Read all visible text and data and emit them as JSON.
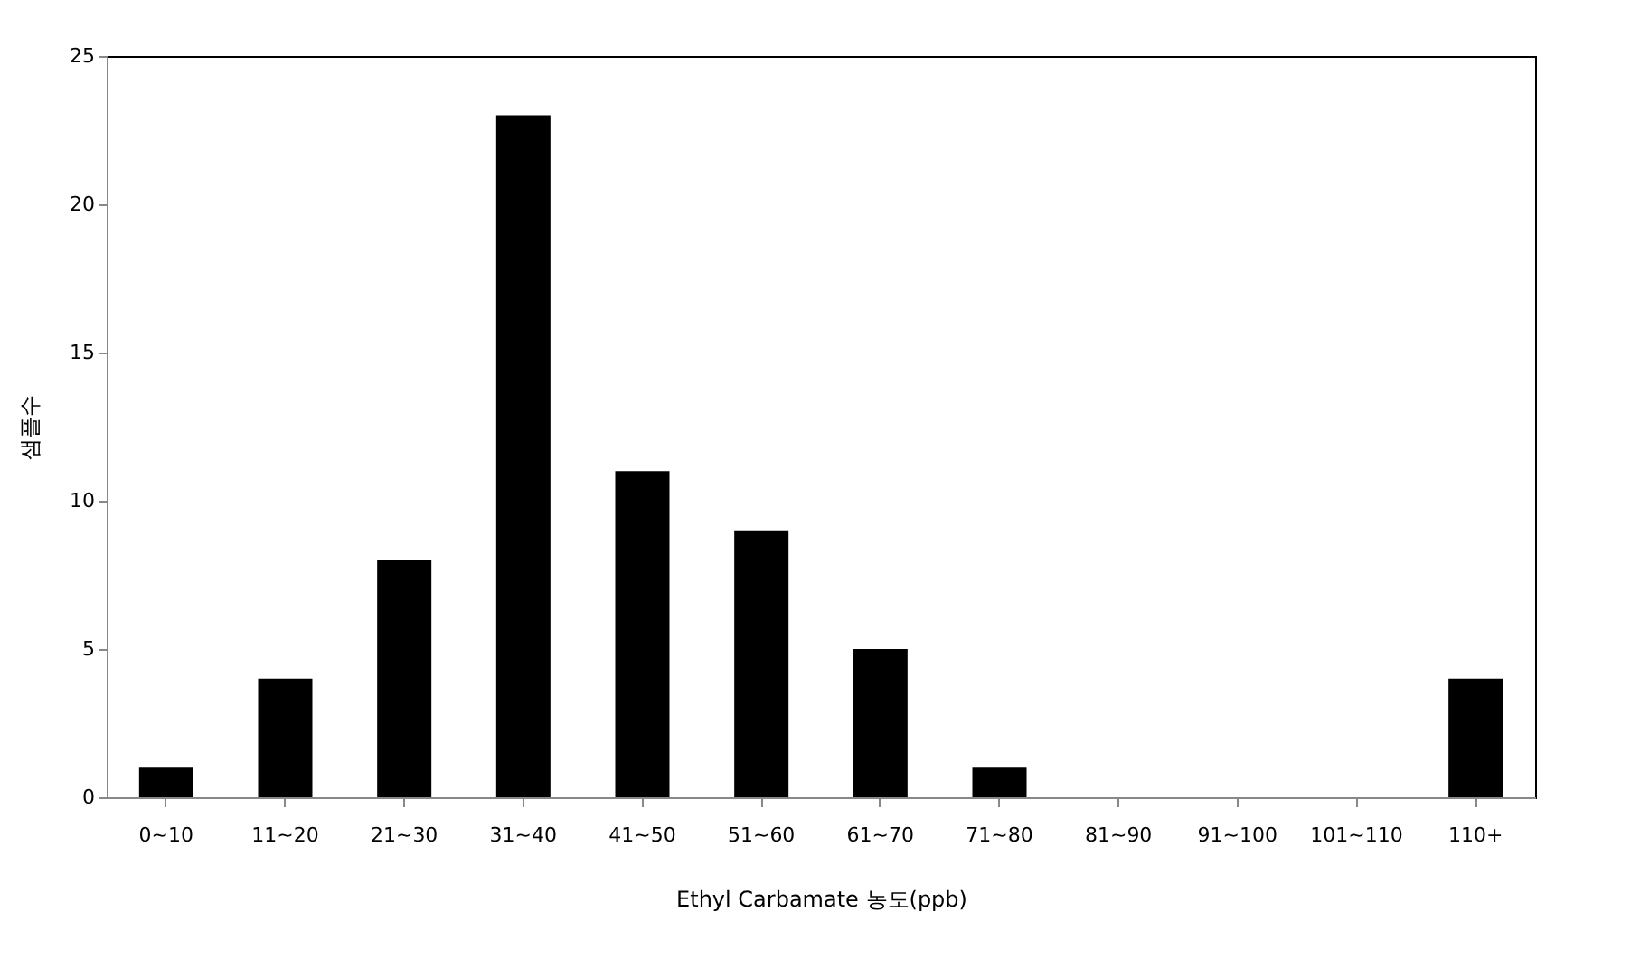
{
  "chart_data": {
    "type": "bar",
    "xlabel": "Ethyl Carbamate 농도(ppb)",
    "ylabel": "샘플수",
    "categories": [
      "0~10",
      "11~20",
      "21~30",
      "31~40",
      "41~50",
      "51~60",
      "61~70",
      "71~80",
      "81~90",
      "91~100",
      "101~110",
      "110+"
    ],
    "values": [
      1,
      4,
      8,
      23,
      11,
      9,
      5,
      1,
      0,
      0,
      0,
      4
    ],
    "color": "#000000",
    "ylim": [
      0,
      25
    ],
    "yticks": [
      0,
      5,
      10,
      15,
      20,
      25
    ],
    "grid": false
  }
}
